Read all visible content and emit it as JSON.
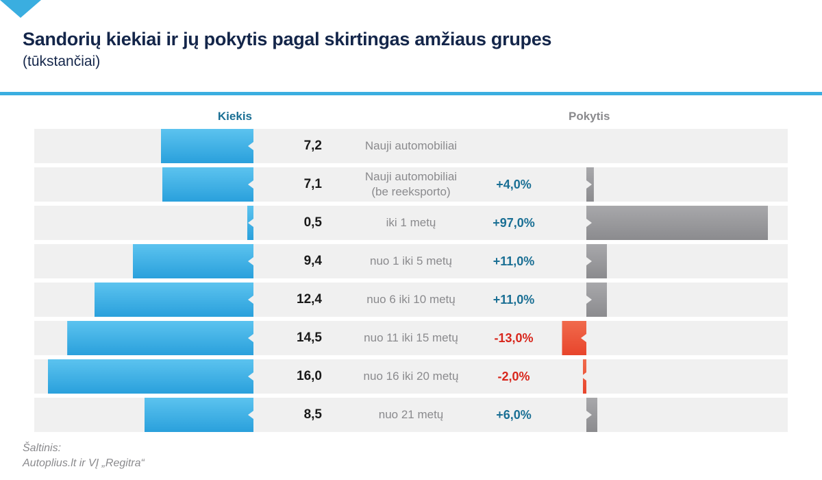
{
  "chart_data": {
    "type": "bar",
    "title": "Sandorių kiekiai ir jų pokytis pagal skirtingas amžiaus grupes",
    "subtitle": "(tūkstančiai)",
    "categories": [
      "Nauji automobiliai",
      "Nauji automobiliai\n(be reeksporto)",
      "iki 1 metų",
      "nuo 1 iki 5 metų",
      "nuo 6 iki 10 metų",
      "nuo 11 iki 15 metų",
      "nuo 16 iki 20 metų",
      "nuo 21 metų"
    ],
    "series": [
      {
        "name": "Kiekis",
        "color": "#2aa0dc",
        "values": [
          7.2,
          7.1,
          0.5,
          9.4,
          12.4,
          14.5,
          16.0,
          8.5
        ],
        "value_labels": [
          "7,2",
          "7,1",
          "0,5",
          "9,4",
          "12,4",
          "14,5",
          "16,0",
          "8,5"
        ]
      },
      {
        "name": "Pokytis",
        "color": "#8b8b8e",
        "negative_color": "#e8452c",
        "values": [
          null,
          4,
          97,
          11,
          11,
          -13,
          -2,
          6
        ],
        "value_labels": [
          null,
          "+4,0%",
          "+97,0%",
          "+11,0%",
          "+11,0%",
          "-13,0%",
          "-2,0%",
          "+6,0%"
        ]
      }
    ],
    "source_label": "Šaltinis:",
    "source": "Autoplius.lt ir VĮ „Regitra“"
  }
}
